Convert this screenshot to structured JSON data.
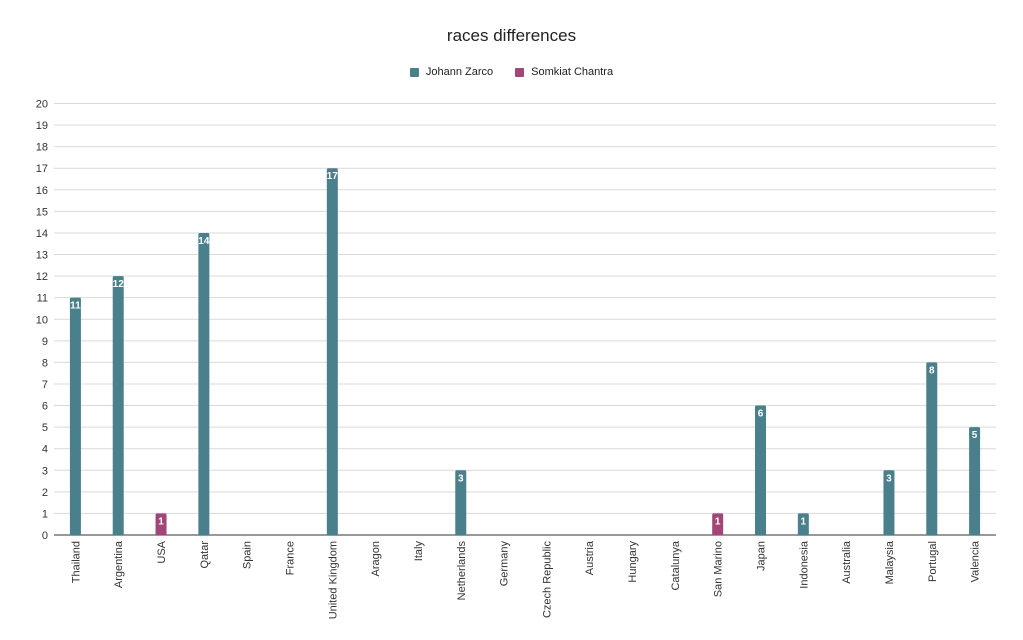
{
  "chart_data": {
    "type": "bar",
    "title": "races differences",
    "xlabel": "",
    "ylabel": "",
    "ylim": [
      0,
      20
    ],
    "yticks": [
      0,
      1,
      2,
      3,
      4,
      5,
      6,
      7,
      8,
      9,
      10,
      11,
      12,
      13,
      14,
      15,
      16,
      17,
      18,
      19,
      20
    ],
    "grid": true,
    "legend_position": "top-center",
    "categories": [
      "Thailand",
      "Argentina",
      "USA",
      "Qatar",
      "Spain",
      "France",
      "United Kingdom",
      "Aragon",
      "Italy",
      "Netherlands",
      "Germany",
      "Czech Republic",
      "Austria",
      "Hungary",
      "Catalunya",
      "San Marino",
      "Japan",
      "Indonesia",
      "Australia",
      "Malaysia",
      "Portugal",
      "Valencia"
    ],
    "series": [
      {
        "name": "Johann Zarco",
        "color": "#4a7f8c",
        "values": [
          11,
          12,
          null,
          14,
          null,
          null,
          17,
          null,
          null,
          3,
          null,
          null,
          null,
          null,
          null,
          null,
          6,
          1,
          null,
          3,
          8,
          5
        ]
      },
      {
        "name": "Somkiat Chantra",
        "color": "#a2467a",
        "values": [
          null,
          null,
          1,
          null,
          null,
          null,
          null,
          null,
          null,
          null,
          null,
          null,
          null,
          null,
          null,
          1,
          null,
          null,
          null,
          null,
          null,
          null
        ]
      }
    ]
  }
}
